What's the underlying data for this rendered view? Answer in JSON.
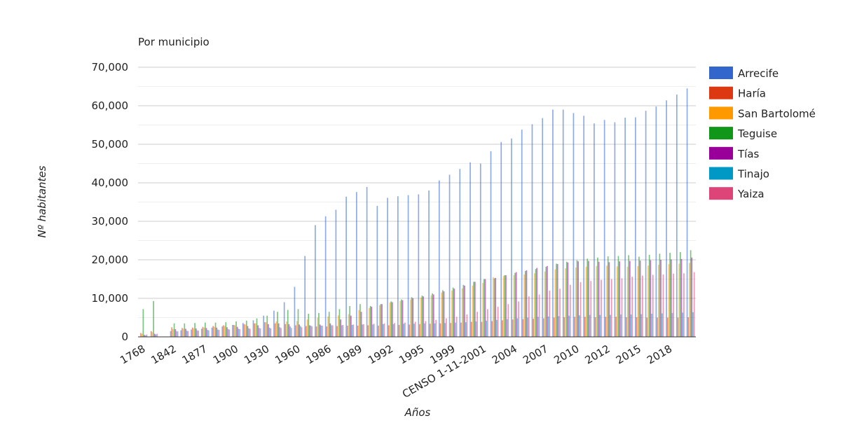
{
  "chart_data": {
    "type": "bar",
    "title": "Por municipio",
    "x_label": "Años",
    "y_label": "Nº habitantes",
    "categories": [
      "1768",
      null,
      null,
      "1842",
      null,
      null,
      "1877",
      null,
      null,
      "1900",
      null,
      null,
      "1930",
      null,
      null,
      "1960",
      null,
      null,
      "1986",
      null,
      null,
      "1989",
      null,
      null,
      "1992",
      null,
      null,
      "1995",
      null,
      null,
      "1999",
      null,
      null,
      "CENSO 1-11-2001",
      null,
      null,
      "2004",
      null,
      null,
      "2007",
      null,
      null,
      "2010",
      null,
      null,
      "2012",
      null,
      null,
      "2015",
      null,
      null,
      "2018",
      null,
      null
    ],
    "series": [
      {
        "name": "Arrecife",
        "color": "#3366cc",
        "values": [
          0,
          0,
          0,
          1500,
          1700,
          1900,
          2100,
          2400,
          2700,
          3100,
          3600,
          4300,
          5500,
          6800,
          9000,
          13000,
          21000,
          29000,
          31300,
          33000,
          36400,
          37600,
          38900,
          34000,
          36100,
          36500,
          36800,
          37000,
          38000,
          40600,
          42100,
          43600,
          45300,
          45000,
          48200,
          50600,
          51500,
          53800,
          55200,
          56800,
          59000,
          59000,
          58100,
          57400,
          55400,
          56300,
          55700,
          56900,
          57000,
          58700,
          59800,
          61400,
          62900,
          64500
        ]
      },
      {
        "name": "Haría",
        "color": "#dc3912",
        "values": [
          1000,
          1500,
          0,
          2500,
          2300,
          2400,
          2600,
          2800,
          3000,
          3100,
          3300,
          3500,
          3800,
          3500,
          3300,
          3000,
          2800,
          2700,
          2700,
          2800,
          2900,
          2900,
          3000,
          2900,
          3000,
          3100,
          3200,
          3300,
          3400,
          3500,
          3600,
          3700,
          3900,
          3900,
          4100,
          4300,
          4500,
          4600,
          4700,
          4800,
          5000,
          5100,
          5200,
          5200,
          5100,
          5200,
          5200,
          5100,
          5100,
          5000,
          5000,
          5000,
          5000,
          5100
        ]
      },
      {
        "name": "San Bartolomé",
        "color": "#ff9900",
        "values": [
          800,
          1200,
          0,
          2000,
          2100,
          2200,
          2400,
          2600,
          2800,
          3000,
          3200,
          3500,
          3800,
          4000,
          4000,
          4100,
          4500,
          5000,
          5300,
          5600,
          5900,
          7000,
          7500,
          8200,
          8900,
          9300,
          9700,
          10200,
          10800,
          11500,
          12000,
          12600,
          13300,
          14000,
          15500,
          15800,
          16000,
          16200,
          16500,
          17000,
          17500,
          17800,
          18000,
          18200,
          18400,
          18500,
          18300,
          18200,
          18400,
          18500,
          18700,
          18900,
          19000,
          19200
        ]
      },
      {
        "name": "Teguise",
        "color": "#109618",
        "values": [
          7200,
          9300,
          0,
          3500,
          3500,
          3600,
          3700,
          3700,
          3800,
          4000,
          4200,
          4800,
          5500,
          6500,
          7000,
          7200,
          6000,
          6200,
          6500,
          7200,
          8000,
          8500,
          8000,
          8500,
          9200,
          9700,
          10300,
          10700,
          11300,
          12100,
          12800,
          13500,
          14300,
          15000,
          15200,
          16000,
          16600,
          17100,
          17600,
          18200,
          19000,
          19500,
          19900,
          20300,
          20600,
          20900,
          21000,
          21200,
          20800,
          21300,
          21600,
          21800,
          22000,
          22500
        ]
      },
      {
        "name": "Tías",
        "color": "#990099",
        "values": [
          500,
          800,
          0,
          2000,
          2100,
          2200,
          2300,
          2400,
          2500,
          2600,
          2800,
          3000,
          3300,
          3500,
          3300,
          3200,
          3000,
          3200,
          3500,
          4500,
          5500,
          6500,
          7800,
          8500,
          9000,
          9500,
          10000,
          10500,
          11000,
          11800,
          12500,
          13300,
          14300,
          15000,
          15300,
          16000,
          16800,
          17300,
          17900,
          18400,
          18900,
          19300,
          19600,
          19700,
          19500,
          19400,
          19600,
          19700,
          19800,
          19900,
          20000,
          20100,
          20200,
          20600
        ]
      },
      {
        "name": "Tinajo",
        "color": "#0099c6",
        "values": [
          400,
          600,
          0,
          1500,
          1600,
          1700,
          1800,
          1900,
          2000,
          2100,
          2200,
          2300,
          2400,
          2500,
          2700,
          2800,
          2900,
          2900,
          3000,
          3000,
          3100,
          3200,
          3200,
          3300,
          3300,
          3400,
          3400,
          3500,
          3500,
          3600,
          3700,
          3800,
          4000,
          4200,
          4400,
          4600,
          4800,
          5000,
          5200,
          5300,
          5400,
          5500,
          5600,
          5700,
          5700,
          5700,
          5800,
          5800,
          5900,
          6000,
          6100,
          6200,
          6300,
          6400
        ]
      },
      {
        "name": "Yaiza",
        "color": "#dd4477",
        "values": [
          600,
          800,
          0,
          1400,
          1500,
          1600,
          1700,
          1800,
          1900,
          2000,
          2100,
          2200,
          2200,
          2300,
          2300,
          2500,
          2700,
          2900,
          3000,
          3100,
          3200,
          3300,
          3400,
          3500,
          3600,
          3700,
          3900,
          4100,
          4400,
          4800,
          5200,
          5800,
          6500,
          7200,
          7800,
          8500,
          9200,
          10500,
          11000,
          12000,
          12500,
          13500,
          14200,
          14500,
          14800,
          15000,
          15200,
          15600,
          15900,
          16100,
          16200,
          16400,
          16500,
          16800
        ]
      }
    ],
    "ylim": [
      0,
      70000
    ],
    "yticks": [
      {
        "value": 0,
        "label": "0"
      },
      {
        "value": 10000,
        "label": "10,000"
      },
      {
        "value": 20000,
        "label": "20,000"
      },
      {
        "value": 30000,
        "label": "30,000"
      },
      {
        "value": 40000,
        "label": "40,000"
      },
      {
        "value": 50000,
        "label": "50,000"
      },
      {
        "value": 60000,
        "label": "60,000"
      },
      {
        "value": 70000,
        "label": "70,000"
      }
    ],
    "grid": true,
    "legend": "right"
  }
}
